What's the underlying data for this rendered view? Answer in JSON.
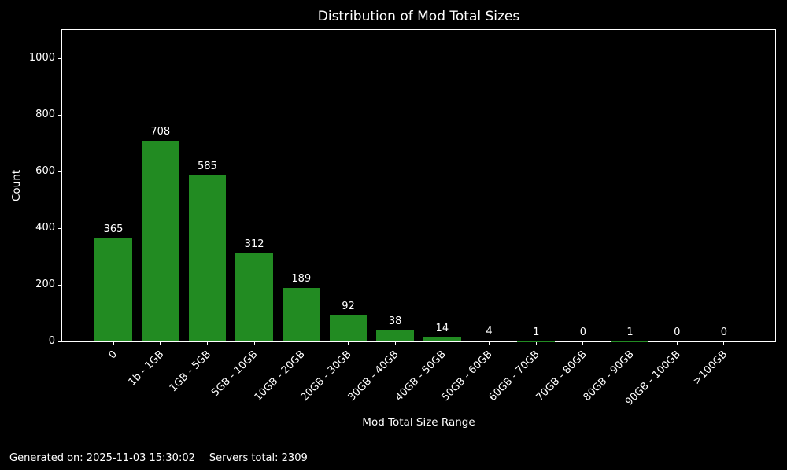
{
  "chart_data": {
    "type": "bar",
    "title": "Distribution of Mod Total Sizes",
    "xlabel": "Mod Total Size Range",
    "ylabel": "Count",
    "categories": [
      "0",
      "1b - 1GB",
      "1GB - 5GB",
      "5GB - 10GB",
      "10GB - 20GB",
      "20GB - 30GB",
      "30GB - 40GB",
      "40GB - 50GB",
      "50GB - 60GB",
      "60GB - 70GB",
      "70GB - 80GB",
      "80GB - 90GB",
      "90GB - 100GB",
      ">100GB"
    ],
    "values": [
      365,
      708,
      585,
      312,
      189,
      92,
      38,
      14,
      4,
      1,
      0,
      1,
      0,
      0
    ],
    "ylim": [
      0,
      1100
    ],
    "yticks": [
      0,
      200,
      400,
      600,
      800,
      1000
    ],
    "bar_color": "#228B22",
    "background_color": "#000000",
    "text_color": "#ffffff",
    "grid": false,
    "legend": false,
    "bar_value_labels": true,
    "x_tick_rotation_deg": 45
  },
  "footer": {
    "generated": "Generated on: 2025-11-03 15:30:02",
    "servers_total": "Servers total: 2309"
  }
}
